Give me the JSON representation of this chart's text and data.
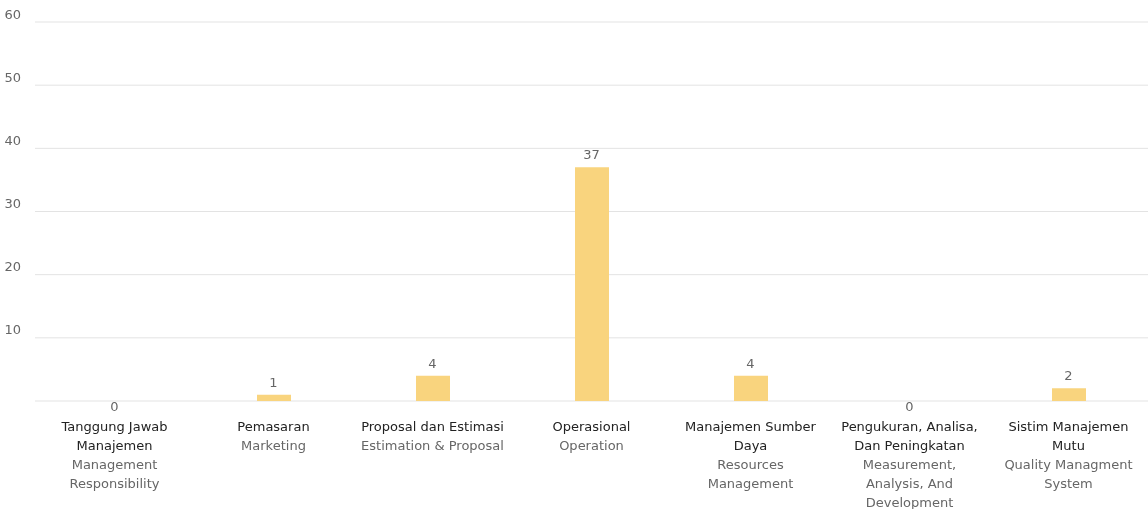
{
  "chart_data": {
    "type": "bar",
    "categories": [
      "Tanggung Jawab Manajemen\nManagement Responsibility",
      "Pemasaran\nMarketing",
      "Proposal dan Estimasi\nEstimation & Proposal",
      "Operasional\nOperation",
      "Manajemen Sumber Daya\nResources Management",
      "Pengukuran, Analisa, Dan Peningkatan\nMeasurement, Analysis, And Development",
      "Sistim Manajemen Mutu\nQuality Managment System"
    ],
    "values": [
      0,
      1,
      4,
      37,
      4,
      0,
      2
    ],
    "data_labels": true,
    "color": "#f9d47e",
    "ylim": [
      0,
      60
    ],
    "yticks": [
      {
        "value": 0,
        "label": null
      },
      10,
      20,
      30,
      40,
      50,
      60
    ],
    "grid": "y"
  }
}
